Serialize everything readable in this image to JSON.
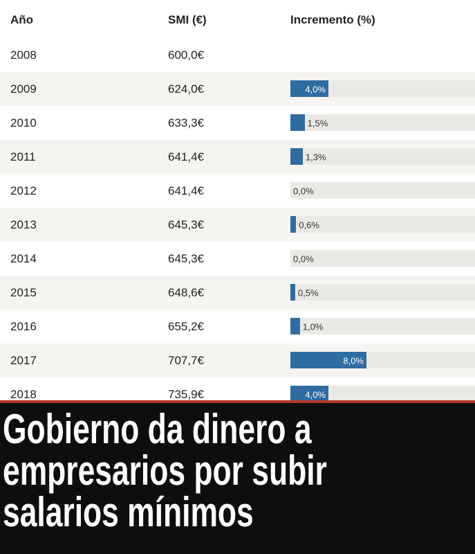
{
  "header": {
    "year": "Año",
    "smi": "SMI (€)",
    "increment": "Incremento (%)"
  },
  "rows": [
    {
      "year": "2008",
      "smi": "600,0€",
      "increment": null,
      "increment_label": null
    },
    {
      "year": "2009",
      "smi": "624,0€",
      "increment": 4.0,
      "increment_label": "4,0%"
    },
    {
      "year": "2010",
      "smi": "633,3€",
      "increment": 1.5,
      "increment_label": "1,5%"
    },
    {
      "year": "2011",
      "smi": "641,4€",
      "increment": 1.3,
      "increment_label": "1,3%"
    },
    {
      "year": "2012",
      "smi": "641,4€",
      "increment": 0.0,
      "increment_label": "0,0%"
    },
    {
      "year": "2013",
      "smi": "645,3€",
      "increment": 0.6,
      "increment_label": "0,6%"
    },
    {
      "year": "2014",
      "smi": "645,3€",
      "increment": 0.0,
      "increment_label": "0,0%"
    },
    {
      "year": "2015",
      "smi": "648,6€",
      "increment": 0.5,
      "increment_label": "0,5%"
    },
    {
      "year": "2016",
      "smi": "655,2€",
      "increment": 1.0,
      "increment_label": "1,0%"
    },
    {
      "year": "2017",
      "smi": "707,7€",
      "increment": 8.0,
      "increment_label": "8,0%"
    },
    {
      "year": "2018",
      "smi": "735,9€",
      "increment": 4.0,
      "increment_label": "4,0%"
    }
  ],
  "headline": [
    "Gobierno da dinero a",
    "empresarios por subir",
    "salarios mínimos"
  ]
}
